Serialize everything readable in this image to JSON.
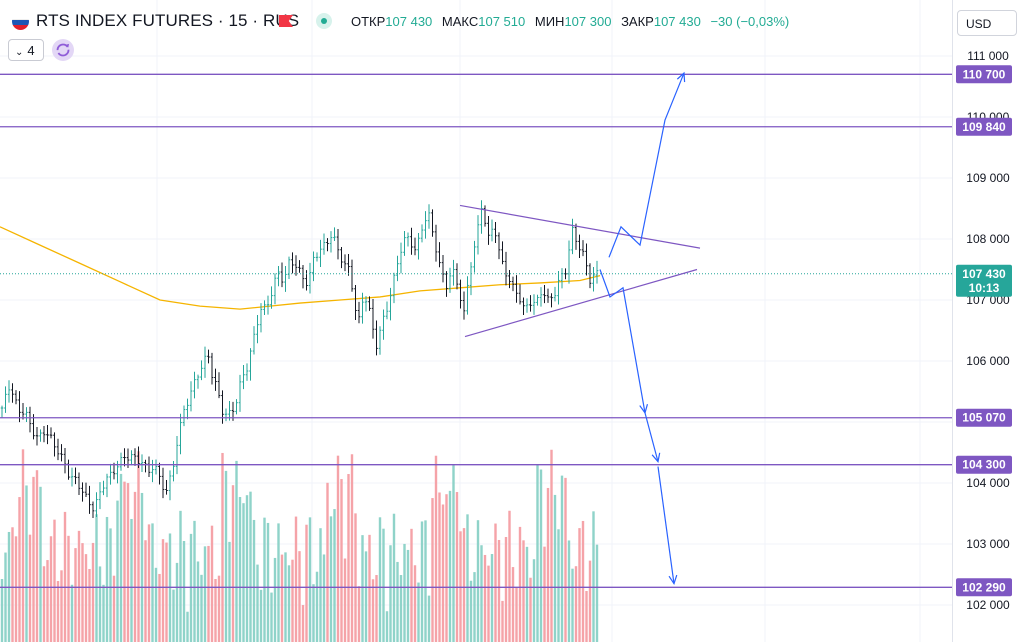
{
  "header": {
    "symbol_title": "RTS INDEX FUTURES · 15 · RUS",
    "ohlc": [
      {
        "label": "ОТКР",
        "value": "107 430"
      },
      {
        "label": "МАКС",
        "value": "107 510"
      },
      {
        "label": "МИН",
        "value": "107 300"
      },
      {
        "label": "ЗАКР",
        "value": "107 430"
      }
    ],
    "change": "−30 (−0,03%)",
    "indicator_count": "4",
    "currency": "USD",
    "accent_up": "#22ab94",
    "accent_down": "#f23645",
    "level_color": "#7e57c2"
  },
  "chart_data": {
    "type": "candlestick",
    "y_axis": {
      "min": 101750,
      "max": 111300,
      "ticks": [
        111000,
        110000,
        109000,
        108000,
        107000,
        106000,
        105000,
        104000,
        103000,
        102000
      ],
      "tick_labels": [
        "111 000",
        "110 000",
        "109 000",
        "108 000",
        "107 000",
        "106 000",
        "105 000",
        "104 000",
        "103 000",
        "102 000"
      ]
    },
    "last_price": {
      "value": 107430,
      "label": "107 430",
      "countdown": "10:13"
    },
    "horizontal_levels": [
      {
        "value": 110700,
        "label": "110 700"
      },
      {
        "value": 109840,
        "label": "109 840"
      },
      {
        "value": 105070,
        "label": "105 070"
      },
      {
        "value": 104300,
        "label": "104 300"
      },
      {
        "value": 102290,
        "label": "102 290"
      }
    ],
    "moving_average": {
      "color": "#f5b400",
      "points": [
        [
          0,
          108200
        ],
        [
          40,
          107900
        ],
        [
          80,
          107600
        ],
        [
          120,
          107300
        ],
        [
          160,
          107000
        ],
        [
          200,
          106900
        ],
        [
          240,
          106850
        ],
        [
          270,
          106900
        ],
        [
          300,
          106950
        ],
        [
          340,
          107000
        ],
        [
          380,
          107050
        ],
        [
          420,
          107150
        ],
        [
          460,
          107200
        ],
        [
          500,
          107250
        ],
        [
          540,
          107280
        ],
        [
          580,
          107320
        ],
        [
          600,
          107400
        ]
      ]
    },
    "triangle": {
      "upper": [
        [
          460,
          108550
        ],
        [
          700,
          107850
        ]
      ],
      "lower": [
        [
          465,
          106400
        ],
        [
          697,
          107500
        ]
      ]
    },
    "scenario_up": [
      [
        609,
        107700
      ],
      [
        621,
        108200
      ],
      [
        640,
        107900
      ],
      [
        665,
        109950
      ],
      [
        684,
        110720
      ]
    ],
    "scenario_down": [
      [
        600,
        107500
      ],
      [
        610,
        107050
      ],
      [
        623,
        107200
      ],
      [
        645,
        105150
      ],
      [
        658,
        104350
      ],
      [
        674,
        102350
      ]
    ],
    "close_path": [
      [
        2,
        105200
      ],
      [
        8,
        105600
      ],
      [
        14,
        105300
      ],
      [
        20,
        105100
      ],
      [
        28,
        105000
      ],
      [
        36,
        104700
      ],
      [
        44,
        104900
      ],
      [
        52,
        104800
      ],
      [
        58,
        104600
      ],
      [
        64,
        104400
      ],
      [
        70,
        104100
      ],
      [
        76,
        104000
      ],
      [
        82,
        103800
      ],
      [
        88,
        103600
      ],
      [
        94,
        103500
      ],
      [
        100,
        103800
      ],
      [
        106,
        104100
      ],
      [
        112,
        104200
      ],
      [
        118,
        104400
      ],
      [
        124,
        104500
      ],
      [
        130,
        104500
      ],
      [
        136,
        104400
      ],
      [
        142,
        104300
      ],
      [
        148,
        104100
      ],
      [
        154,
        104200
      ],
      [
        160,
        104000
      ],
      [
        166,
        103800
      ],
      [
        172,
        104200
      ],
      [
        178,
        104800
      ],
      [
        184,
        105300
      ],
      [
        190,
        105500
      ],
      [
        196,
        105800
      ],
      [
        202,
        105900
      ],
      [
        208,
        106100
      ],
      [
        212,
        105700
      ],
      [
        218,
        105400
      ],
      [
        224,
        105000
      ],
      [
        230,
        105100
      ],
      [
        236,
        105300
      ],
      [
        242,
        105800
      ],
      [
        248,
        106000
      ],
      [
        254,
        106500
      ],
      [
        260,
        106900
      ],
      [
        266,
        106900
      ],
      [
        272,
        107100
      ],
      [
        278,
        107400
      ],
      [
        284,
        107200
      ],
      [
        290,
        107600
      ],
      [
        296,
        107500
      ],
      [
        302,
        107400
      ],
      [
        308,
        107300
      ],
      [
        314,
        107800
      ],
      [
        320,
        107900
      ],
      [
        326,
        108000
      ],
      [
        332,
        108100
      ],
      [
        338,
        107800
      ],
      [
        344,
        107500
      ],
      [
        350,
        107400
      ],
      [
        354,
        106900
      ],
      [
        358,
        106500
      ],
      [
        364,
        107100
      ],
      [
        370,
        106800
      ],
      [
        376,
        106300
      ],
      [
        382,
        106700
      ],
      [
        388,
        107000
      ],
      [
        394,
        107400
      ],
      [
        400,
        107800
      ],
      [
        406,
        108000
      ],
      [
        410,
        107900
      ],
      [
        416,
        107700
      ],
      [
        422,
        108100
      ],
      [
        428,
        108400
      ],
      [
        434,
        108000
      ],
      [
        440,
        107600
      ],
      [
        446,
        107300
      ],
      [
        452,
        107600
      ],
      [
        458,
        107300
      ],
      [
        464,
        106800
      ],
      [
        470,
        107500
      ],
      [
        476,
        107900
      ],
      [
        482,
        108500
      ],
      [
        488,
        107900
      ],
      [
        494,
        108200
      ],
      [
        500,
        107700
      ],
      [
        506,
        107500
      ],
      [
        512,
        107300
      ],
      [
        518,
        107200
      ],
      [
        524,
        106900
      ],
      [
        530,
        107000
      ],
      [
        536,
        106900
      ],
      [
        542,
        107100
      ],
      [
        548,
        106900
      ],
      [
        554,
        107000
      ],
      [
        560,
        107300
      ],
      [
        566,
        107500
      ],
      [
        572,
        108200
      ],
      [
        578,
        108000
      ],
      [
        584,
        107800
      ],
      [
        590,
        107400
      ],
      [
        596,
        107450
      ]
    ]
  }
}
